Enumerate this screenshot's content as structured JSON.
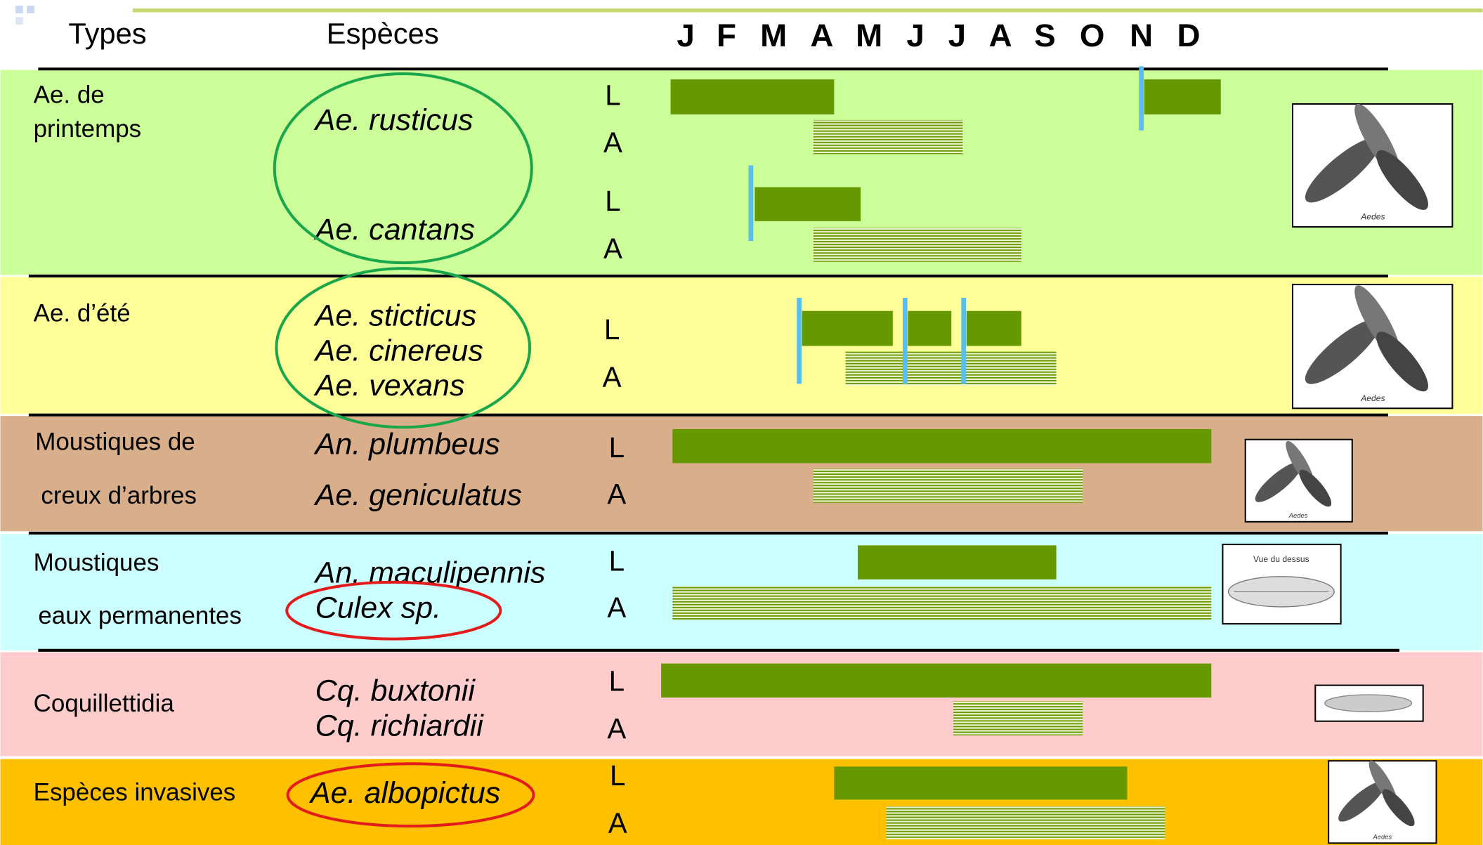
{
  "header": {
    "types": "Types",
    "species": "Espèces",
    "months": [
      "J",
      "F",
      "M",
      "A",
      "M",
      "J",
      "J",
      "A",
      "S",
      "O",
      "N",
      "D"
    ]
  },
  "rows": [
    {
      "type": [
        "Ae. de",
        "printemps"
      ],
      "species": [
        "Ae. rusticus",
        "Ae. cantans"
      ],
      "stages": [
        "L",
        "A",
        "L",
        "A"
      ]
    },
    {
      "type": [
        "Ae. d’été"
      ],
      "species": [
        "Ae. sticticus",
        "Ae. cinereus",
        "Ae. vexans"
      ],
      "stages": [
        "L",
        "A"
      ]
    },
    {
      "type": [
        "Moustiques de",
        "creux d’arbres"
      ],
      "species": [
        "An. plumbeus",
        "Ae. geniculatus"
      ],
      "stages": [
        "L",
        "A"
      ]
    },
    {
      "type": [
        "Moustiques",
        "eaux permanentes"
      ],
      "species": [
        "An. maculipennis",
        "Culex sp."
      ],
      "stages": [
        "L",
        "A"
      ]
    },
    {
      "type": [
        "Coquillettidia"
      ],
      "species": [
        "Cq. buxtonii",
        "Cq. richiardii"
      ],
      "stages": [
        "L",
        "A"
      ]
    },
    {
      "type": [
        "Espèces invasives"
      ],
      "species": [
        "Ae. albopictus"
      ],
      "stages": [
        "L",
        "A"
      ]
    }
  ],
  "images": [
    "Aedes",
    "Aedes",
    "Aedes",
    "Vue du dessus",
    "Aedes"
  ]
}
